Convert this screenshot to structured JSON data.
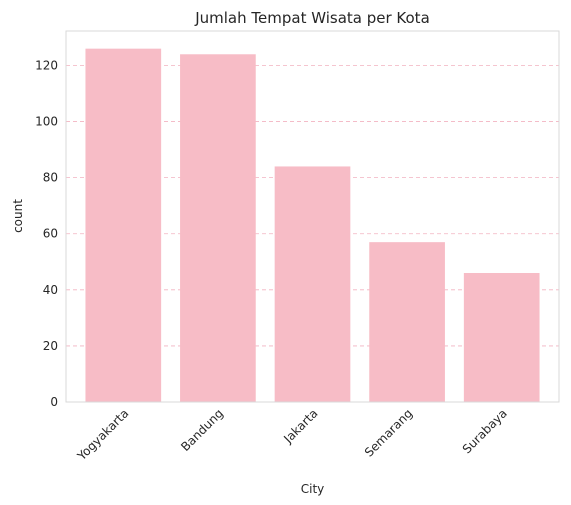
{
  "chart_data": {
    "type": "bar",
    "title": "Jumlah Tempat Wisata per Kota",
    "xlabel": "City",
    "ylabel": "count",
    "categories": [
      "Yogyakarta",
      "Bandung",
      "Jakarta",
      "Semarang",
      "Surabaya"
    ],
    "values": [
      126,
      124,
      84,
      57,
      46
    ],
    "yticks": [
      0,
      20,
      40,
      60,
      80,
      100,
      120
    ],
    "ylim": [
      0,
      132.3
    ],
    "grid": "y dashed",
    "colors": {
      "bar": "#f7bcc6",
      "grid": "#f2b2c0",
      "frame": "#d9d9d9"
    }
  }
}
